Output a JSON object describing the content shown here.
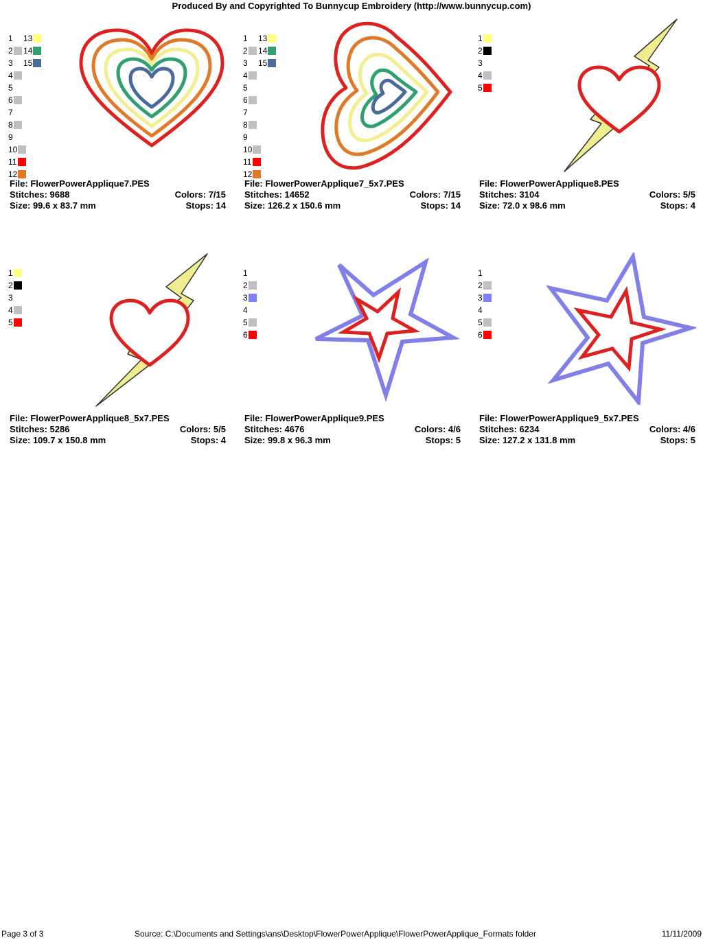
{
  "header": "Produced By and Copyrighted To Bunnycup Embroidery (http://www.bunnycup.com)",
  "designs": [
    {
      "file": "File: FlowerPowerApplique7.PES",
      "stitches": "Stitches: 9688",
      "colors": "Colors: 7/15",
      "size": "Size: 99.6 x 83.7 mm",
      "stops": "Stops: 14",
      "legend": [
        {
          "n": "1",
          "c": ""
        },
        {
          "n": "2",
          "c": "#c0c0c0"
        },
        {
          "n": "3",
          "c": ""
        },
        {
          "n": "4",
          "c": "#c0c0c0"
        },
        {
          "n": "5",
          "c": ""
        },
        {
          "n": "6",
          "c": "#c0c0c0"
        },
        {
          "n": "7",
          "c": ""
        },
        {
          "n": "8",
          "c": "#c0c0c0"
        },
        {
          "n": "9",
          "c": ""
        },
        {
          "n": "10",
          "c": "#c0c0c0"
        },
        {
          "n": "11",
          "c": "#ff0000"
        },
        {
          "n": "12",
          "c": "#e07a28"
        },
        {
          "n": "13",
          "c": "#ffff80"
        },
        {
          "n": "14",
          "c": "#30a070"
        },
        {
          "n": "15",
          "c": "#4a6a9a"
        }
      ]
    },
    {
      "file": "File: FlowerPowerApplique7_5x7.PES",
      "stitches": "Stitches: 14652",
      "colors": "Colors: 7/15",
      "size": "Size: 126.2 x 150.6 mm",
      "stops": "Stops: 14",
      "legend": [
        {
          "n": "1",
          "c": ""
        },
        {
          "n": "2",
          "c": "#c0c0c0"
        },
        {
          "n": "3",
          "c": ""
        },
        {
          "n": "4",
          "c": "#c0c0c0"
        },
        {
          "n": "5",
          "c": ""
        },
        {
          "n": "6",
          "c": "#c0c0c0"
        },
        {
          "n": "7",
          "c": ""
        },
        {
          "n": "8",
          "c": "#c0c0c0"
        },
        {
          "n": "9",
          "c": ""
        },
        {
          "n": "10",
          "c": "#c0c0c0"
        },
        {
          "n": "11",
          "c": "#ff0000"
        },
        {
          "n": "12",
          "c": "#e07a28"
        },
        {
          "n": "13",
          "c": "#ffff80"
        },
        {
          "n": "14",
          "c": "#30a070"
        },
        {
          "n": "15",
          "c": "#4a6a9a"
        }
      ]
    },
    {
      "file": "File: FlowerPowerApplique8.PES",
      "stitches": "Stitches: 3104",
      "colors": "Colors: 5/5",
      "size": "Size: 72.0 x 98.6 mm",
      "stops": "Stops: 4",
      "legend": [
        {
          "n": "1",
          "c": "#ffff80"
        },
        {
          "n": "2",
          "c": "#000000"
        },
        {
          "n": "3",
          "c": ""
        },
        {
          "n": "4",
          "c": "#c0c0c0"
        },
        {
          "n": "5",
          "c": "#ff0000"
        }
      ]
    },
    {
      "file": "File: FlowerPowerApplique8_5x7.PES",
      "stitches": "Stitches: 5286",
      "colors": "Colors: 5/5",
      "size": "Size: 109.7 x 150.8 mm",
      "stops": "Stops: 4",
      "legend": [
        {
          "n": "1",
          "c": "#ffff80"
        },
        {
          "n": "2",
          "c": "#000000"
        },
        {
          "n": "3",
          "c": ""
        },
        {
          "n": "4",
          "c": "#c0c0c0"
        },
        {
          "n": "5",
          "c": "#ff0000"
        }
      ]
    },
    {
      "file": "File: FlowerPowerApplique9.PES",
      "stitches": "Stitches: 4676",
      "colors": "Colors: 4/6",
      "size": "Size: 99.8 x 96.3 mm",
      "stops": "Stops: 5",
      "legend": [
        {
          "n": "1",
          "c": ""
        },
        {
          "n": "2",
          "c": "#c0c0c0"
        },
        {
          "n": "3",
          "c": "#8080ff"
        },
        {
          "n": "4",
          "c": ""
        },
        {
          "n": "5",
          "c": "#c0c0c0"
        },
        {
          "n": "6",
          "c": "#ff0000"
        }
      ]
    },
    {
      "file": "File: FlowerPowerApplique9_5x7.PES",
      "stitches": "Stitches: 6234",
      "colors": "Colors: 4/6",
      "size": "Size: 127.2 x 131.8 mm",
      "stops": "Stops: 5",
      "legend": [
        {
          "n": "1",
          "c": ""
        },
        {
          "n": "2",
          "c": "#c0c0c0"
        },
        {
          "n": "3",
          "c": "#8080ff"
        },
        {
          "n": "4",
          "c": ""
        },
        {
          "n": "5",
          "c": "#c0c0c0"
        },
        {
          "n": "6",
          "c": "#ff0000"
        }
      ]
    }
  ],
  "footer": {
    "page": "Page 3 of 3",
    "source": "Source: C:\\Documents and Settings\\ans\\Desktop\\FlowerPowerApplique\\FlowerPowerApplique_Formats folder",
    "date": "11/11/2009"
  }
}
